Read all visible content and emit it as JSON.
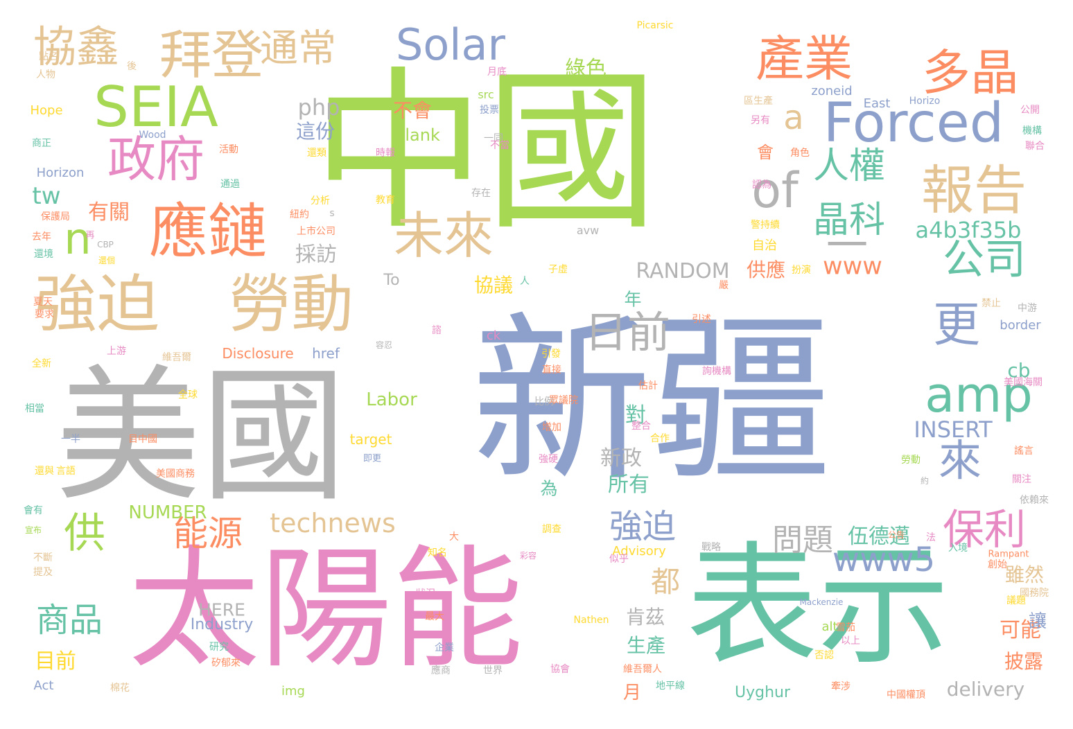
{
  "palette": {
    "green": "#a6d854",
    "blue": "#8da0cb",
    "pink": "#e78ac3",
    "teal": "#66c2a5",
    "orange": "#fc8d62",
    "tan": "#e5c494",
    "gray": "#b3b3b3",
    "yellow": "#ffd92f"
  },
  "words": [
    {
      "text": "中國",
      "color": "green",
      "v": false
    },
    {
      "text": "新疆",
      "color": "blue",
      "v": false
    },
    {
      "text": "美國",
      "color": "gray",
      "v": false
    },
    {
      "text": "太陽能",
      "color": "pink",
      "v": false
    },
    {
      "text": "表示",
      "color": "teal",
      "v": false
    },
    {
      "text": "強迫",
      "color": "tan",
      "v": false
    },
    {
      "text": "勞動",
      "color": "tan",
      "v": false
    },
    {
      "text": "應鏈",
      "color": "orange",
      "v": false
    },
    {
      "text": "政府",
      "color": "pink",
      "v": false
    },
    {
      "text": "SEIA",
      "color": "green",
      "v": false
    },
    {
      "text": "拜登",
      "color": "tan",
      "v": false
    },
    {
      "text": "協鑫",
      "color": "tan",
      "v": false
    },
    {
      "text": "通常",
      "color": "tan",
      "v": false
    },
    {
      "text": "Solar",
      "color": "blue",
      "v": false
    },
    {
      "text": "產業",
      "color": "orange",
      "v": false
    },
    {
      "text": "多晶",
      "color": "orange",
      "v": false
    },
    {
      "text": "Forced",
      "color": "blue",
      "v": false
    },
    {
      "text": "報告",
      "color": "tan",
      "v": false
    },
    {
      "text": "of",
      "color": "gray",
      "v": false
    },
    {
      "text": "a",
      "color": "tan",
      "v": false
    },
    {
      "text": "人權",
      "color": "teal",
      "v": false
    },
    {
      "text": "晶科",
      "color": "teal",
      "v": false
    },
    {
      "text": "未來",
      "color": "tan",
      "v": false
    },
    {
      "text": "n",
      "color": "green",
      "v": false
    },
    {
      "text": "tw",
      "color": "teal",
      "v": false
    },
    {
      "text": "一",
      "color": "gray",
      "v": false
    },
    {
      "text": "公司",
      "color": "teal",
      "v": false
    },
    {
      "text": "a4b3f35b",
      "color": "teal",
      "v": false
    },
    {
      "text": "amp",
      "color": "teal",
      "v": false
    },
    {
      "text": "更",
      "color": "blue",
      "v": false
    },
    {
      "text": "來",
      "color": "blue",
      "v": false
    },
    {
      "text": "保利",
      "color": "pink",
      "v": false
    },
    {
      "text": "www",
      "color": "orange",
      "v": false
    },
    {
      "text": "www5",
      "color": "blue",
      "v": false
    },
    {
      "text": "日前",
      "color": "gray",
      "v": false
    },
    {
      "text": "供",
      "color": "green",
      "v": false
    },
    {
      "text": "能源",
      "color": "orange",
      "v": false
    },
    {
      "text": "technews",
      "color": "tan",
      "v": false
    },
    {
      "text": "商品",
      "color": "teal",
      "v": false
    },
    {
      "text": "都",
      "color": "tan",
      "v": false
    },
    {
      "text": "問題",
      "color": "gray",
      "v": false
    },
    {
      "text": "強迫",
      "color": "blue",
      "v": false
    },
    {
      "text": "伍德邁",
      "color": "teal",
      "v": false
    },
    {
      "text": "php",
      "color": "gray",
      "v": false
    },
    {
      "text": "這份",
      "color": "blue",
      "v": false
    },
    {
      "text": "不會",
      "color": "orange",
      "v": false
    },
    {
      "text": "blank",
      "color": "green",
      "v": false
    },
    {
      "text": "綠色",
      "color": "green",
      "v": false
    },
    {
      "text": "RANDOM",
      "color": "gray",
      "v": false
    },
    {
      "text": "INSERT",
      "color": "blue",
      "v": false
    },
    {
      "text": "Labor",
      "color": "green",
      "v": false
    },
    {
      "text": "NUMBER",
      "color": "green",
      "v": false
    },
    {
      "text": "新政",
      "color": "gray",
      "v": false
    },
    {
      "text": "所有",
      "color": "teal",
      "v": false
    },
    {
      "text": "對",
      "color": "teal",
      "v": false
    },
    {
      "text": "採訪",
      "color": "gray",
      "v": false
    },
    {
      "text": "有關",
      "color": "orange",
      "v": false
    },
    {
      "text": "協議",
      "color": "yellow",
      "v": false
    },
    {
      "text": "供應",
      "color": "orange",
      "v": false
    },
    {
      "text": "cb",
      "color": "teal",
      "v": false
    },
    {
      "text": "雖然",
      "color": "tan",
      "v": false
    },
    {
      "text": "可能",
      "color": "orange",
      "v": false
    },
    {
      "text": "讓",
      "color": "blue",
      "v": false
    },
    {
      "text": "披露",
      "color": "orange",
      "v": false
    },
    {
      "text": "肯茲",
      "color": "gray",
      "v": false
    },
    {
      "text": "生產",
      "color": "teal",
      "v": false
    },
    {
      "text": "月",
      "color": "orange",
      "v": false
    },
    {
      "text": "delivery",
      "color": "gray",
      "v": false
    },
    {
      "text": "Uyghur",
      "color": "teal",
      "v": false
    },
    {
      "text": "目前",
      "color": "yellow",
      "v": false
    },
    {
      "text": "HERE",
      "color": "gray",
      "v": false
    },
    {
      "text": "Industry",
      "color": "blue",
      "v": false
    },
    {
      "text": "To",
      "color": "gray",
      "v": false
    },
    {
      "text": "年",
      "color": "teal",
      "v": false
    },
    {
      "text": "為",
      "color": "teal",
      "v": false
    },
    {
      "text": "Disclosure",
      "color": "orange",
      "v": false
    },
    {
      "text": "href",
      "color": "blue",
      "v": false
    },
    {
      "text": "ck",
      "color": "pink",
      "v": false
    },
    {
      "text": "會",
      "color": "orange",
      "v": false
    },
    {
      "text": "自治",
      "color": "yellow",
      "v": false
    },
    {
      "text": "Horizon",
      "color": "blue",
      "v": false
    },
    {
      "text": "Hope",
      "color": "yellow",
      "v": false
    },
    {
      "text": "Wood",
      "color": "blue",
      "v": false
    },
    {
      "text": "Picarsic",
      "color": "yellow",
      "v": false
    },
    {
      "text": "zoneid",
      "color": "blue",
      "v": false
    },
    {
      "text": "East",
      "color": "blue",
      "v": false
    },
    {
      "text": "Horizo",
      "color": "blue",
      "v": false
    },
    {
      "text": "avw",
      "color": "gray",
      "v": false
    },
    {
      "text": "border",
      "color": "blue",
      "v": false
    },
    {
      "text": "target",
      "color": "yellow",
      "v": false
    },
    {
      "text": "Advisory",
      "color": "yellow",
      "v": false
    },
    {
      "text": "Act",
      "color": "blue",
      "v": false
    },
    {
      "text": "img",
      "color": "green",
      "v": false
    },
    {
      "text": "alt",
      "color": "green",
      "v": false
    },
    {
      "text": "src",
      "color": "green",
      "v": false
    },
    {
      "text": "Nathen",
      "color": "yellow",
      "v": false
    },
    {
      "text": "Mackenzie",
      "color": "blue",
      "v": false
    },
    {
      "text": "Rampant",
      "color": "orange",
      "v": false
    },
    {
      "text": "點名",
      "color": "tan",
      "v": false
    },
    {
      "text": "人物",
      "color": "tan",
      "v": false
    },
    {
      "text": "後",
      "color": "tan",
      "v": false
    },
    {
      "text": "商正",
      "color": "teal",
      "v": false
    },
    {
      "text": "活動",
      "color": "orange",
      "v": false
    },
    {
      "text": "還類",
      "color": "yellow",
      "v": false
    },
    {
      "text": "時報",
      "color": "pink",
      "v": false
    },
    {
      "text": "投票",
      "color": "blue",
      "v": false
    },
    {
      "text": "一同",
      "color": "gray",
      "v": false
    },
    {
      "text": "不當",
      "color": "pink",
      "v": false
    },
    {
      "text": "月底",
      "color": "pink",
      "v": false
    },
    {
      "text": "分析",
      "color": "yellow",
      "v": false
    },
    {
      "text": "教育",
      "color": "yellow",
      "v": false
    },
    {
      "text": "存在",
      "color": "gray",
      "v": false
    },
    {
      "text": "紐約",
      "color": "orange",
      "v": false
    },
    {
      "text": "上市公司",
      "color": "orange",
      "v": false
    },
    {
      "text": "s",
      "color": "gray",
      "v": false
    },
    {
      "text": "保護局",
      "color": "orange",
      "v": false
    },
    {
      "text": "通過",
      "color": "teal",
      "v": false
    },
    {
      "text": "去年",
      "color": "orange",
      "v": false
    },
    {
      "text": "還境",
      "color": "teal",
      "v": false
    },
    {
      "text": "CBP",
      "color": "gray",
      "v": false
    },
    {
      "text": "還個",
      "color": "yellow",
      "v": false
    },
    {
      "text": "再",
      "color": "pink",
      "v": false
    },
    {
      "text": "全新",
      "color": "yellow",
      "v": false
    },
    {
      "text": "上游",
      "color": "pink",
      "v": false
    },
    {
      "text": "維吾爾",
      "color": "tan",
      "v": false
    },
    {
      "text": "全球",
      "color": "yellow",
      "v": false
    },
    {
      "text": "相當",
      "color": "teal",
      "v": false
    },
    {
      "text": "一半",
      "color": "blue",
      "v": false
    },
    {
      "text": "目中國",
      "color": "orange",
      "v": false
    },
    {
      "text": "美國商務",
      "color": "orange",
      "v": false
    },
    {
      "text": "還與",
      "color": "yellow",
      "v": false
    },
    {
      "text": "言語",
      "color": "yellow",
      "v": false
    },
    {
      "text": "會有",
      "color": "teal",
      "v": false
    },
    {
      "text": "宣布",
      "color": "green",
      "v": false
    },
    {
      "text": "不斷",
      "color": "tan",
      "v": false
    },
    {
      "text": "提及",
      "color": "tan",
      "v": false
    },
    {
      "text": "研究",
      "color": "teal",
      "v": false
    },
    {
      "text": "矽郁來",
      "color": "orange",
      "v": false
    },
    {
      "text": "棉花",
      "color": "tan",
      "v": false
    },
    {
      "text": "即更",
      "color": "blue",
      "v": false
    },
    {
      "text": "大",
      "color": "orange",
      "v": false
    },
    {
      "text": "知名",
      "color": "yellow",
      "v": false
    },
    {
      "text": "狀況",
      "color": "pink",
      "v": false
    },
    {
      "text": "最大",
      "color": "orange",
      "v": false
    },
    {
      "text": "企業",
      "color": "blue",
      "v": false
    },
    {
      "text": "應商",
      "color": "gray",
      "v": false
    },
    {
      "text": "世界",
      "color": "gray",
      "v": false
    },
    {
      "text": "協會",
      "color": "pink",
      "v": false
    },
    {
      "text": "維吾爾人",
      "color": "orange",
      "v": false
    },
    {
      "text": "地平線",
      "color": "teal",
      "v": false
    },
    {
      "text": "中國權頂",
      "color": "orange",
      "v": false
    },
    {
      "text": "牽涉",
      "color": "orange",
      "v": false
    },
    {
      "text": "否認",
      "color": "yellow",
      "v": false
    },
    {
      "text": "雪茄",
      "color": "orange",
      "v": false
    },
    {
      "text": "以上",
      "color": "pink",
      "v": false
    },
    {
      "text": "國務院",
      "color": "tan",
      "v": false
    },
    {
      "text": "議題",
      "color": "yellow",
      "v": false
    },
    {
      "text": "創始",
      "color": "orange",
      "v": false
    },
    {
      "text": "入境",
      "color": "teal",
      "v": false
    },
    {
      "text": "法",
      "color": "pink",
      "v": false
    },
    {
      "text": "公告",
      "color": "orange",
      "v": false
    },
    {
      "text": "戰略",
      "color": "gray",
      "v": false
    },
    {
      "text": "似乎",
      "color": "pink",
      "v": false
    },
    {
      "text": "彩容",
      "color": "pink",
      "v": false
    },
    {
      "text": "調查",
      "color": "yellow",
      "v": false
    },
    {
      "text": "強硬",
      "color": "pink",
      "v": false
    },
    {
      "text": "增加",
      "color": "orange",
      "v": false
    },
    {
      "text": "比例",
      "color": "gray",
      "v": false
    },
    {
      "text": "合作",
      "color": "yellow",
      "v": false
    },
    {
      "text": "整合",
      "color": "pink",
      "v": false
    },
    {
      "text": "估計",
      "color": "orange",
      "v": false
    },
    {
      "text": "眾議院",
      "color": "orange",
      "v": false
    },
    {
      "text": "詢機構",
      "color": "pink",
      "v": false
    },
    {
      "text": "引述",
      "color": "orange",
      "v": false
    },
    {
      "text": "引發",
      "color": "yellow",
      "v": false
    },
    {
      "text": "直接",
      "color": "orange",
      "v": false
    },
    {
      "text": "諮",
      "color": "pink",
      "v": false
    },
    {
      "text": "容忍",
      "color": "gray",
      "v": false
    },
    {
      "text": "子虛",
      "color": "yellow",
      "v": false
    },
    {
      "text": "人",
      "color": "teal",
      "v": false
    },
    {
      "text": "夏天",
      "color": "orange",
      "v": false
    },
    {
      "text": "要求",
      "color": "orange",
      "v": false
    },
    {
      "text": "嚴",
      "color": "orange",
      "v": false
    },
    {
      "text": "警持續",
      "color": "yellow",
      "v": false
    },
    {
      "text": "扮演",
      "color": "yellow",
      "v": false
    },
    {
      "text": "認為",
      "color": "pink",
      "v": false
    },
    {
      "text": "角色",
      "color": "orange",
      "v": false
    },
    {
      "text": "區生產",
      "color": "tan",
      "v": false
    },
    {
      "text": "另有",
      "color": "pink",
      "v": false
    },
    {
      "text": "機構",
      "color": "teal",
      "v": false
    },
    {
      "text": "聯合",
      "color": "pink",
      "v": false
    },
    {
      "text": "公開",
      "color": "pink",
      "v": false
    },
    {
      "text": "禁止",
      "color": "tan",
      "v": false
    },
    {
      "text": "中游",
      "color": "gray",
      "v": false
    },
    {
      "text": "美國海關",
      "color": "pink",
      "v": false
    },
    {
      "text": "謠言",
      "color": "orange",
      "v": false
    },
    {
      "text": "勞動",
      "color": "green",
      "v": false
    },
    {
      "text": "約",
      "color": "gray",
      "v": false
    },
    {
      "text": "關注",
      "color": "pink",
      "v": false
    },
    {
      "text": "依賴來",
      "color": "gray",
      "v": false
    }
  ]
}
